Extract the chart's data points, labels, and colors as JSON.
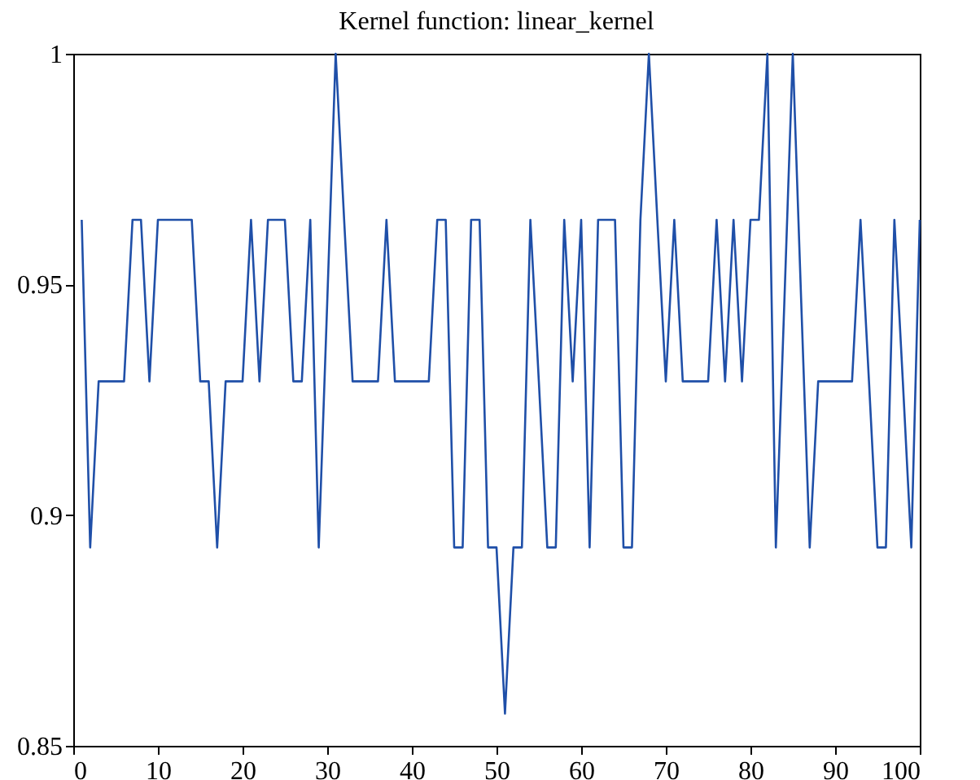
{
  "chart_data": {
    "type": "line",
    "title": "Kernel function: linear_kernel",
    "x": [
      1,
      2,
      3,
      4,
      5,
      6,
      7,
      8,
      9,
      10,
      11,
      12,
      13,
      14,
      15,
      16,
      17,
      18,
      19,
      20,
      21,
      22,
      23,
      24,
      25,
      26,
      27,
      28,
      29,
      30,
      31,
      32,
      33,
      34,
      35,
      36,
      37,
      38,
      39,
      40,
      41,
      42,
      43,
      44,
      45,
      46,
      47,
      48,
      49,
      50,
      51,
      52,
      53,
      54,
      55,
      56,
      57,
      58,
      59,
      60,
      61,
      62,
      63,
      64,
      65,
      66,
      67,
      68,
      69,
      70,
      71,
      72,
      73,
      74,
      75,
      76,
      77,
      78,
      79,
      80,
      81,
      82,
      83,
      84,
      85,
      86,
      87,
      88,
      89,
      90,
      91,
      92,
      93,
      94,
      95,
      96,
      97,
      98,
      99,
      100
    ],
    "series": [
      {
        "color": "#1f4fa8",
        "values": [
          0.964,
          0.893,
          0.929,
          0.929,
          0.929,
          0.929,
          0.964,
          0.964,
          0.929,
          0.964,
          0.964,
          0.964,
          0.964,
          0.964,
          0.929,
          0.929,
          0.893,
          0.929,
          0.929,
          0.929,
          0.964,
          0.929,
          0.964,
          0.964,
          0.964,
          0.929,
          0.929,
          0.964,
          0.893,
          0.946,
          1.0,
          0.964,
          0.929,
          0.929,
          0.929,
          0.929,
          0.964,
          0.929,
          0.929,
          0.929,
          0.929,
          0.929,
          0.964,
          0.964,
          0.893,
          0.893,
          0.964,
          0.964,
          0.893,
          0.893,
          0.857,
          0.893,
          0.893,
          0.964,
          0.929,
          0.893,
          0.893,
          0.964,
          0.929,
          0.964,
          0.893,
          0.964,
          0.964,
          0.964,
          0.893,
          0.893,
          0.964,
          1.0,
          0.964,
          0.929,
          0.964,
          0.929,
          0.929,
          0.929,
          0.929,
          0.964,
          0.929,
          0.964,
          0.929,
          0.964,
          0.964,
          1.0,
          0.893,
          0.946,
          1.0,
          0.946,
          0.893,
          0.929,
          0.929,
          0.929,
          0.929,
          0.929,
          0.964,
          0.929,
          0.893,
          0.893,
          0.964,
          0.929,
          0.893,
          0.964
        ]
      }
    ],
    "xlim": [
      0,
      100
    ],
    "xticks": [
      0,
      10,
      20,
      30,
      40,
      50,
      60,
      70,
      80,
      90,
      100
    ],
    "ylim": [
      0.85,
      1
    ],
    "yticks": [
      0.85,
      0.9,
      0.95,
      1
    ],
    "grid": false,
    "legend": false,
    "marker": "none",
    "line_style": "solid"
  }
}
